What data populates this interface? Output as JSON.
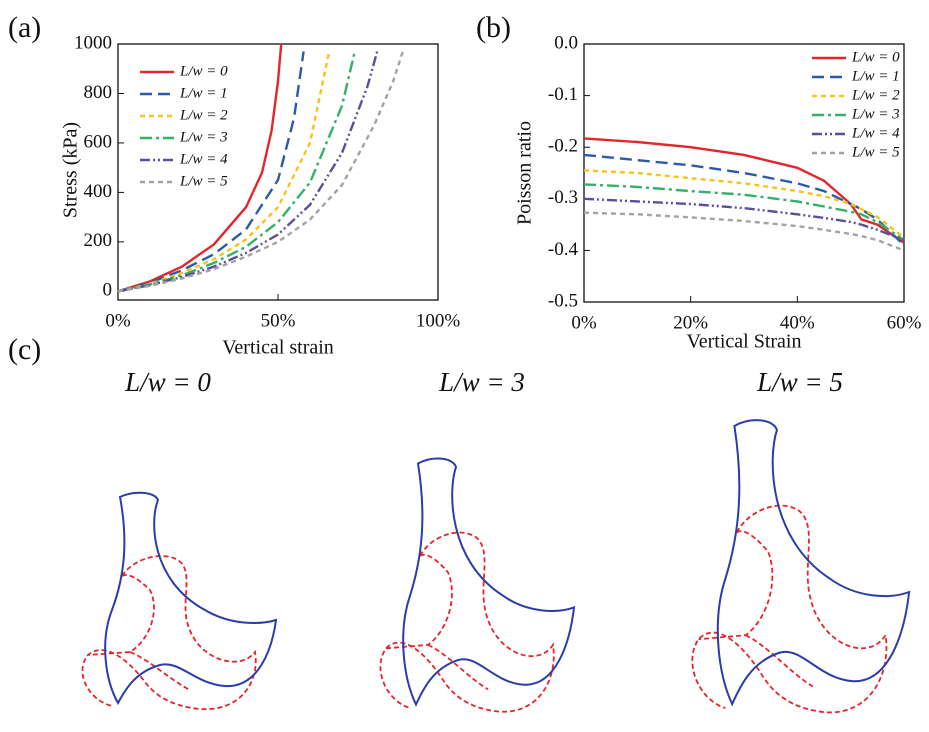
{
  "panels": [
    "(a)",
    "(b)",
    "(c)"
  ],
  "chart_data": [
    {
      "type": "line",
      "xlabel": "Vertical strain",
      "ylabel": "Stress (kPa)",
      "legend": "upper left",
      "xlim": [
        0,
        100
      ],
      "ylim": [
        -35,
        1000
      ],
      "xticks": [
        {
          "value": 0,
          "label": "0%"
        },
        {
          "value": 50,
          "label": "50%"
        },
        {
          "value": 100,
          "label": "100%"
        }
      ],
      "yticks": [
        0,
        200,
        400,
        600,
        800,
        1000
      ],
      "series": [
        {
          "name": "L/w = 0",
          "color": "#e3262b",
          "style": "solid",
          "x": [
            0,
            10,
            20,
            30,
            40,
            45,
            48,
            50,
            51
          ],
          "values": [
            0,
            40,
            100,
            190,
            340,
            480,
            650,
            850,
            1000
          ]
        },
        {
          "name": "L/w = 1",
          "color": "#2c5ba6",
          "style": "dash",
          "x": [
            0,
            10,
            20,
            30,
            40,
            50,
            55,
            58
          ],
          "values": [
            0,
            35,
            85,
            150,
            250,
            450,
            700,
            970
          ]
        },
        {
          "name": "L/w = 2",
          "color": "#f5c31a",
          "style": "shortdash",
          "x": [
            0,
            10,
            20,
            30,
            40,
            50,
            60,
            66
          ],
          "values": [
            0,
            30,
            75,
            130,
            210,
            340,
            600,
            970
          ]
        },
        {
          "name": "L/w = 3",
          "color": "#35b069",
          "style": "dashdot",
          "x": [
            0,
            10,
            20,
            30,
            40,
            50,
            60,
            70,
            74
          ],
          "values": [
            0,
            28,
            65,
            115,
            180,
            280,
            440,
            750,
            970
          ]
        },
        {
          "name": "L/w = 4",
          "color": "#5b4e9c",
          "style": "dashdotdot",
          "x": [
            0,
            10,
            20,
            30,
            40,
            50,
            60,
            70,
            78,
            81
          ],
          "values": [
            0,
            25,
            58,
            100,
            155,
            230,
            350,
            560,
            830,
            970
          ]
        },
        {
          "name": "L/w = 5",
          "color": "#a3a3a3",
          "style": "shortdash",
          "x": [
            0,
            10,
            20,
            30,
            40,
            50,
            60,
            70,
            80,
            86,
            89
          ],
          "values": [
            0,
            22,
            52,
            90,
            140,
            200,
            290,
            430,
            670,
            850,
            970
          ]
        }
      ]
    },
    {
      "type": "line",
      "xlabel": "Vertical Strain",
      "ylabel": "Poisson ratio",
      "legend": "upper right",
      "xlim": [
        0,
        60
      ],
      "ylim": [
        -0.5,
        0
      ],
      "xticks": [
        {
          "value": 0,
          "label": "0%"
        },
        {
          "value": 20,
          "label": "20%"
        },
        {
          "value": 40,
          "label": "40%"
        },
        {
          "value": 60,
          "label": "60%"
        }
      ],
      "yticks": [
        -0.5,
        -0.4,
        -0.3,
        -0.2,
        -0.1,
        {
          "value": 0,
          "label": "0.0"
        }
      ],
      "x": [
        0,
        10,
        20,
        30,
        40,
        45,
        50,
        52,
        55,
        60
      ],
      "series": [
        {
          "name": "L/w = 0",
          "color": "#e3262b",
          "style": "solid",
          "values": [
            -0.183,
            -0.19,
            -0.2,
            -0.215,
            -0.24,
            -0.265,
            -0.31,
            -0.34,
            -0.35,
            -0.385
          ]
        },
        {
          "name": "L/w = 1",
          "color": "#2c5ba6",
          "style": "dash",
          "values": [
            -0.215,
            -0.225,
            -0.235,
            -0.25,
            -0.27,
            -0.285,
            -0.31,
            -0.32,
            -0.34,
            -0.39
          ]
        },
        {
          "name": "L/w = 2",
          "color": "#f5c31a",
          "style": "shortdash",
          "values": [
            -0.245,
            -0.25,
            -0.26,
            -0.27,
            -0.285,
            -0.295,
            -0.31,
            -0.32,
            -0.335,
            -0.375
          ]
        },
        {
          "name": "L/w = 3",
          "color": "#35b069",
          "style": "dashdot",
          "values": [
            -0.272,
            -0.277,
            -0.285,
            -0.292,
            -0.305,
            -0.315,
            -0.325,
            -0.33,
            -0.345,
            -0.38
          ]
        },
        {
          "name": "L/w = 4",
          "color": "#5b4e9c",
          "style": "dashdotdot",
          "values": [
            -0.3,
            -0.305,
            -0.31,
            -0.318,
            -0.33,
            -0.337,
            -0.345,
            -0.35,
            -0.36,
            -0.38
          ]
        },
        {
          "name": "L/w = 5",
          "color": "#a3a3a3",
          "style": "shortdash",
          "values": [
            -0.327,
            -0.33,
            -0.336,
            -0.343,
            -0.353,
            -0.36,
            -0.368,
            -0.372,
            -0.38,
            -0.4
          ]
        }
      ]
    }
  ],
  "shapes": {
    "labels": [
      "L/w = 0",
      "L/w = 3",
      "L/w = 5"
    ]
  }
}
